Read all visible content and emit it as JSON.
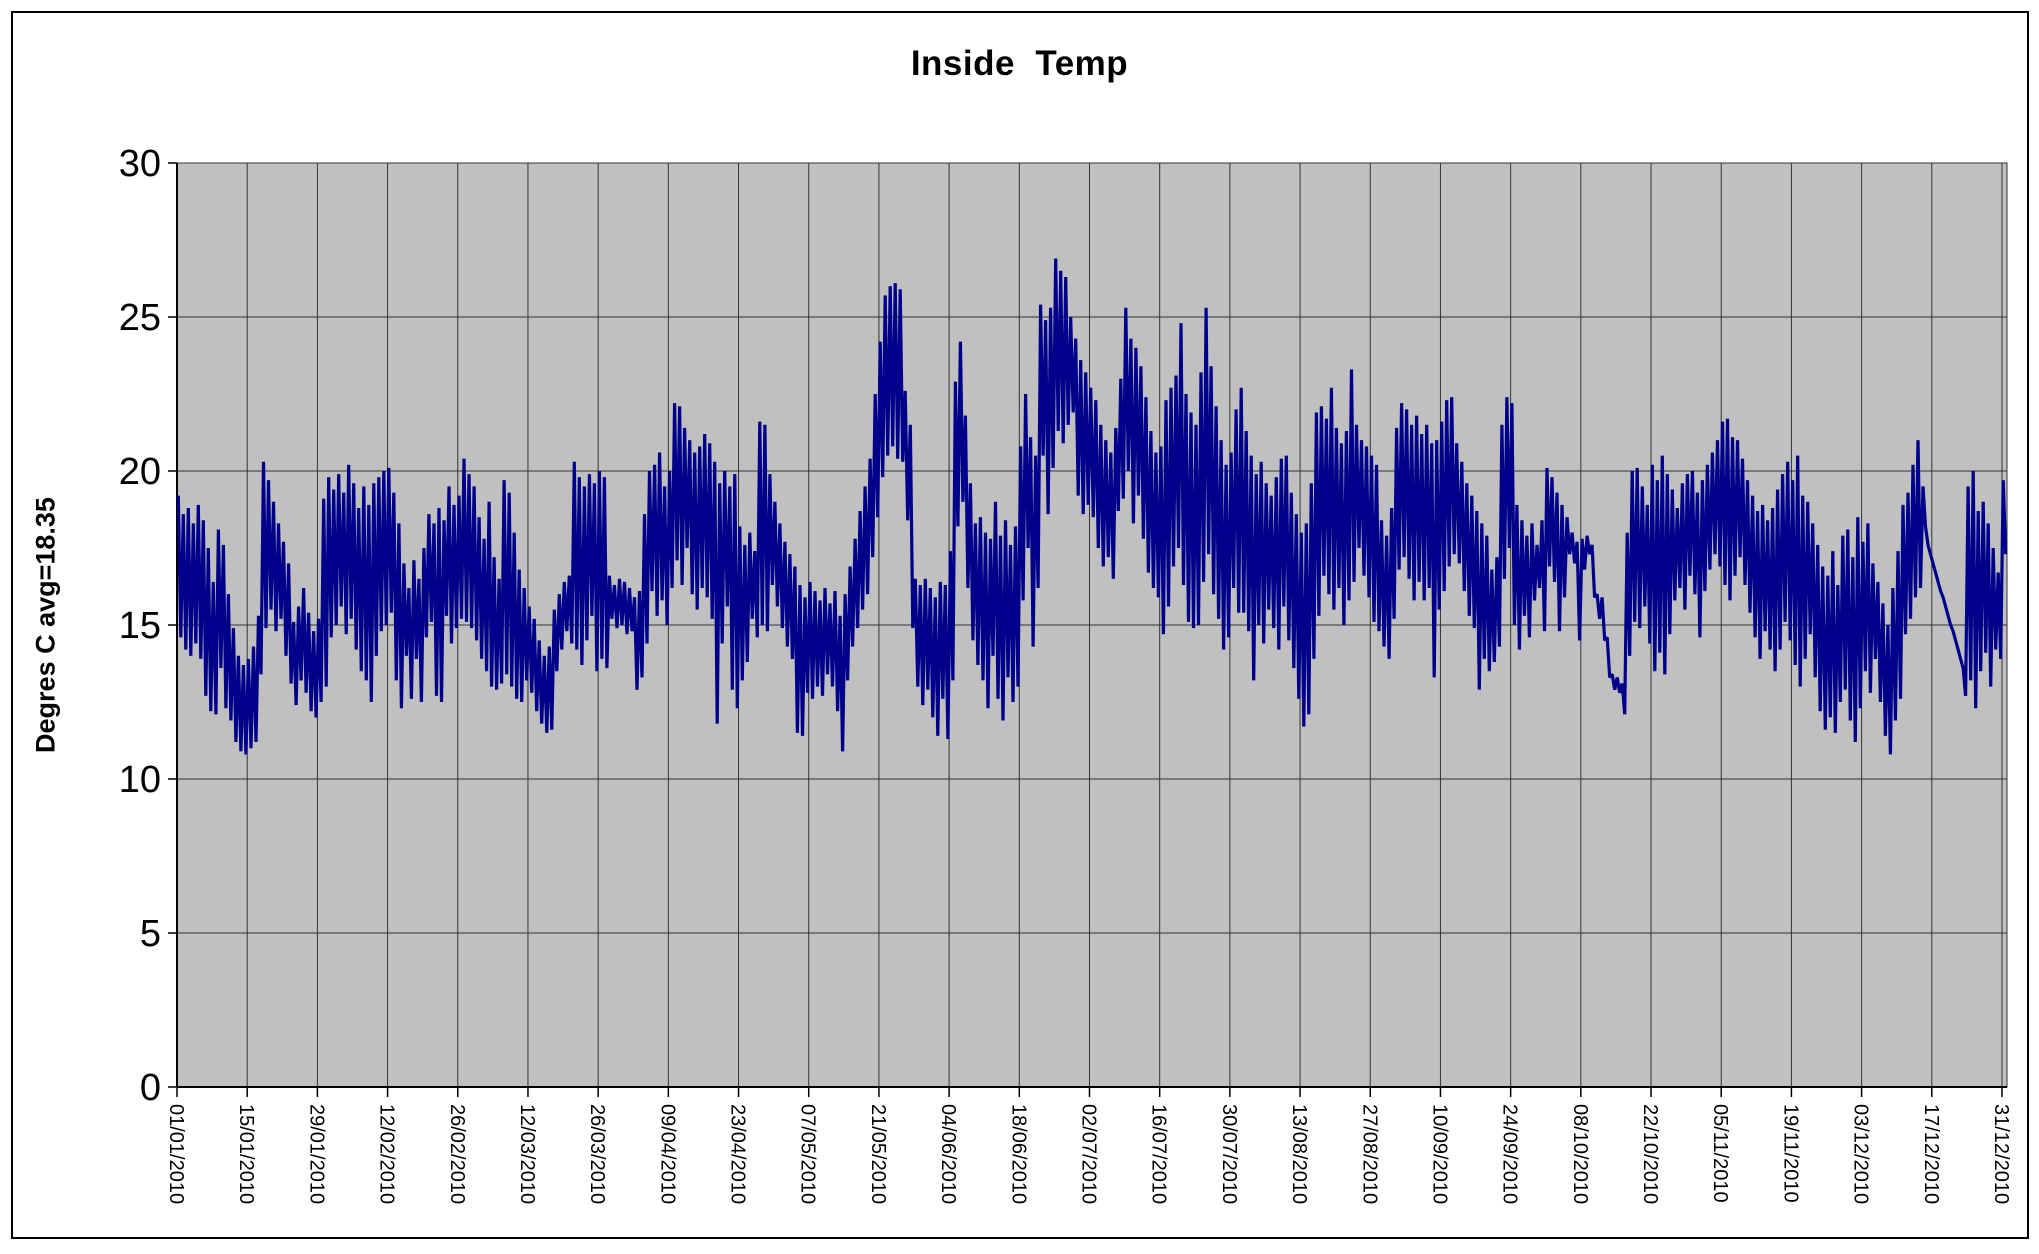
{
  "chart_data": {
    "type": "line",
    "title": "Inside  Temp",
    "ylabel": "Degres C avg=18.35",
    "xlabel": "",
    "ylim": [
      0,
      30
    ],
    "y_ticks": [
      0,
      5,
      10,
      15,
      20,
      25,
      30
    ],
    "x_tick_interval_days": 14,
    "x_range_days": 365,
    "grid": true,
    "legend": "none",
    "plot_bg": "#c0c0c0",
    "grid_color": "#333333",
    "line_color": "#00008b",
    "x_tick_labels": [
      "01/01/2010",
      "15/01/2010",
      "29/01/2010",
      "12/02/2010",
      "26/02/2010",
      "12/03/2010",
      "26/03/2010",
      "09/04/2010",
      "23/04/2010",
      "07/05/2010",
      "21/05/2010",
      "04/06/2010",
      "18/06/2010",
      "02/07/2010",
      "16/07/2010",
      "30/07/2010",
      "13/08/2010",
      "27/08/2010",
      "10/09/2010",
      "24/09/2010",
      "08/10/2010",
      "22/10/2010",
      "05/11/2010",
      "19/11/2010",
      "03/12/2010",
      "17/12/2010",
      "31/12/2010"
    ],
    "series": [
      {
        "name": "Inside Temp",
        "sampling": "two readings per day: daily high then daily low, 01/01/2010 - 31/12/2010",
        "daily_high": [
          19.2,
          18.6,
          18.8,
          18.3,
          18.9,
          18.4,
          17.5,
          16.4,
          18.1,
          17.6,
          16.0,
          14.9,
          14.0,
          13.7,
          13.9,
          14.3,
          15.3,
          20.3,
          19.7,
          19.0,
          18.3,
          17.7,
          17.0,
          15.1,
          15.6,
          16.2,
          15.4,
          14.8,
          15.2,
          19.1,
          19.8,
          19.4,
          19.9,
          19.3,
          20.2,
          19.6,
          18.8,
          19.5,
          18.9,
          19.6,
          19.8,
          20.0,
          20.1,
          19.3,
          18.3,
          17.0,
          16.2,
          17.1,
          16.5,
          17.5,
          18.6,
          18.3,
          18.8,
          18.4,
          19.5,
          18.9,
          19.2,
          20.4,
          19.9,
          19.5,
          18.5,
          17.8,
          19.0,
          17.2,
          16.5,
          19.7,
          19.3,
          18.0,
          16.8,
          16.2,
          15.6,
          15.2,
          14.5,
          14.0,
          14.3,
          15.5,
          16.0,
          16.4,
          16.6,
          20.3,
          19.8,
          19.5,
          19.9,
          19.6,
          20.0,
          19.8,
          16.6,
          16.3,
          16.5,
          16.4,
          16.2,
          15.9,
          16.1,
          18.6,
          20.0,
          20.2,
          20.6,
          19.5,
          20.0,
          22.2,
          22.1,
          21.4,
          21.0,
          20.6,
          20.8,
          21.2,
          20.9,
          20.3,
          19.6,
          20.0,
          19.5,
          19.9,
          18.2,
          17.6,
          18.0,
          17.4,
          21.6,
          21.5,
          19.9,
          19.0,
          18.3,
          17.7,
          17.3,
          16.9,
          16.3,
          15.9,
          16.4,
          16.1,
          15.8,
          16.2,
          15.7,
          16.1,
          15.3,
          16.0,
          16.9,
          17.8,
          18.7,
          19.5,
          20.4,
          22.5,
          24.2,
          25.7,
          26.0,
          26.1,
          25.9,
          22.6,
          21.5,
          16.5,
          16.3,
          16.5,
          16.2,
          15.9,
          16.4,
          16.3,
          17.4,
          22.9,
          24.2,
          21.8,
          19.6,
          18.3,
          18.5,
          18.0,
          17.8,
          19.0,
          17.9,
          18.4,
          17.6,
          18.2,
          20.8,
          22.5,
          21.1,
          20.5,
          25.4,
          24.9,
          25.3,
          26.9,
          26.5,
          26.3,
          25.0,
          24.3,
          23.6,
          23.2,
          22.7,
          22.3,
          21.5,
          21.0,
          20.6,
          21.4,
          23.0,
          25.3,
          24.3,
          24.0,
          23.4,
          22.4,
          21.3,
          20.6,
          20.8,
          22.3,
          22.7,
          23.1,
          24.8,
          22.5,
          21.9,
          21.5,
          23.2,
          25.3,
          23.4,
          22.1,
          21.0,
          20.2,
          20.6,
          22.0,
          22.7,
          21.3,
          20.5,
          19.9,
          20.3,
          19.6,
          19.2,
          19.8,
          20.4,
          20.5,
          19.3,
          18.6,
          18.0,
          18.3,
          19.6,
          21.9,
          22.1,
          21.7,
          22.7,
          21.4,
          20.9,
          21.3,
          23.3,
          21.5,
          21.0,
          20.8,
          20.5,
          20.2,
          18.4,
          17.9,
          18.8,
          21.4,
          22.2,
          22.0,
          21.5,
          21.8,
          21.2,
          21.5,
          20.9,
          21.0,
          21.6,
          22.3,
          22.4,
          20.9,
          20.3,
          19.6,
          19.2,
          18.7,
          18.3,
          17.9,
          16.8,
          17.2,
          21.5,
          22.4,
          22.2,
          18.9,
          18.4,
          17.9,
          18.3,
          17.6,
          18.4,
          20.1,
          19.8,
          19.3,
          18.9,
          18.5,
          18.0,
          17.7,
          17.8,
          17.9,
          17.6,
          16.0,
          15.9,
          14.6,
          13.4,
          13.3,
          13.1,
          18.0,
          20.0,
          20.1,
          19.5,
          18.9,
          20.2,
          19.7,
          20.5,
          19.9,
          19.4,
          18.8,
          19.6,
          19.9,
          20.0,
          19.3,
          19.7,
          20.2,
          20.6,
          21.0,
          21.6,
          21.7,
          21.1,
          21.0,
          20.4,
          19.7,
          19.2,
          18.7,
          18.9,
          18.4,
          18.8,
          19.4,
          19.9,
          20.3,
          19.7,
          20.5,
          19.2,
          19.0,
          18.3,
          17.6,
          16.9,
          16.6,
          17.4,
          16.3,
          17.9,
          18.1,
          17.2,
          18.5,
          17.7,
          18.3,
          17.0,
          16.4,
          15.7,
          15.0,
          16.2,
          17.4,
          18.9,
          19.3,
          20.2,
          21.0,
          19.5,
          17.6,
          17.0,
          16.4,
          15.9,
          15.3,
          14.8,
          14.2,
          13.6,
          19.5,
          20.0,
          18.7,
          19.0,
          18.3,
          17.5,
          16.7,
          19.7
        ],
        "daily_low": [
          14.6,
          14.2,
          14.0,
          14.4,
          13.9,
          12.7,
          12.2,
          12.1,
          13.6,
          12.3,
          11.9,
          11.2,
          10.9,
          10.8,
          11.0,
          11.2,
          13.4,
          14.9,
          15.5,
          14.8,
          15.2,
          14.0,
          13.1,
          12.4,
          13.2,
          12.8,
          12.2,
          12.0,
          12.5,
          13.0,
          14.6,
          15.0,
          15.6,
          14.7,
          15.2,
          14.2,
          13.5,
          13.2,
          12.5,
          14.0,
          14.8,
          15.0,
          15.4,
          13.2,
          12.3,
          14.0,
          12.6,
          13.9,
          12.5,
          14.6,
          15.1,
          12.7,
          12.5,
          15.3,
          14.4,
          14.9,
          15.2,
          15.1,
          14.9,
          14.5,
          13.9,
          13.5,
          13.0,
          12.9,
          13.1,
          13.4,
          13.0,
          12.6,
          12.5,
          13.2,
          12.8,
          12.2,
          11.8,
          11.5,
          11.6,
          13.5,
          14.2,
          14.8,
          14.4,
          14.2,
          13.7,
          14.5,
          15.3,
          13.5,
          13.9,
          13.6,
          15.2,
          14.9,
          15.0,
          14.7,
          14.8,
          12.9,
          13.3,
          14.4,
          16.1,
          15.3,
          15.8,
          15.0,
          16.2,
          17.1,
          16.3,
          17.5,
          16.0,
          15.5,
          16.2,
          15.9,
          15.2,
          11.8,
          14.4,
          15.6,
          12.9,
          12.3,
          13.2,
          13.8,
          15.2,
          14.6,
          15.0,
          14.8,
          16.3,
          15.6,
          14.9,
          14.3,
          13.9,
          11.5,
          11.4,
          12.8,
          12.6,
          13.0,
          12.7,
          13.4,
          13.0,
          12.2,
          10.9,
          13.2,
          14.3,
          14.9,
          15.5,
          16.0,
          17.2,
          18.5,
          19.8,
          20.5,
          20.8,
          20.4,
          20.3,
          18.4,
          14.9,
          13.0,
          12.4,
          12.9,
          12.0,
          11.4,
          12.6,
          11.3,
          13.2,
          18.2,
          19.0,
          16.2,
          14.5,
          13.7,
          13.2,
          12.3,
          14.0,
          12.6,
          11.9,
          13.3,
          12.5,
          13.0,
          15.8,
          17.5,
          14.3,
          16.2,
          20.5,
          18.6,
          20.1,
          21.3,
          20.9,
          21.5,
          21.9,
          19.2,
          18.6,
          18.9,
          18.5,
          17.5,
          16.9,
          17.2,
          16.5,
          18.7,
          19.1,
          20.0,
          18.3,
          19.2,
          17.8,
          16.7,
          16.2,
          15.9,
          14.7,
          15.6,
          16.9,
          17.5,
          16.3,
          15.1,
          14.9,
          15.0,
          16.4,
          17.3,
          16.0,
          15.2,
          14.2,
          14.6,
          16.2,
          15.4,
          15.4,
          14.8,
          13.2,
          15.0,
          14.4,
          15.5,
          14.9,
          14.2,
          15.6,
          14.5,
          13.6,
          12.6,
          11.7,
          12.1,
          13.9,
          15.3,
          16.6,
          16.0,
          15.5,
          16.2,
          15.0,
          15.8,
          16.4,
          17.5,
          16.6,
          15.9,
          15.1,
          14.8,
          14.3,
          13.9,
          15.2,
          16.8,
          17.2,
          16.5,
          15.8,
          16.4,
          15.8,
          16.2,
          13.3,
          15.5,
          16.1,
          16.9,
          17.3,
          17.0,
          16.1,
          15.3,
          14.9,
          12.9,
          13.9,
          13.5,
          13.8,
          14.3,
          16.5,
          17.5,
          15.0,
          14.2,
          15.3,
          14.6,
          15.8,
          16.2,
          14.8,
          16.9,
          16.4,
          14.8,
          15.9,
          17.3,
          17.0,
          14.5,
          16.8,
          17.3,
          15.9,
          15.2,
          14.5,
          13.3,
          12.9,
          12.8,
          12.1,
          14.0,
          15.1,
          14.9,
          15.6,
          14.4,
          13.5,
          14.1,
          13.4,
          14.7,
          15.8,
          16.2,
          15.5,
          16.6,
          16.0,
          14.6,
          16.1,
          16.8,
          17.3,
          16.9,
          16.3,
          15.8,
          16.6,
          17.2,
          16.3,
          15.4,
          14.6,
          13.9,
          14.8,
          14.2,
          13.5,
          14.2,
          15.1,
          14.5,
          13.7,
          13.0,
          13.9,
          14.7,
          13.3,
          12.2,
          11.6,
          12.0,
          11.5,
          12.5,
          12.9,
          11.9,
          11.2,
          12.3,
          13.5,
          12.8,
          13.9,
          12.5,
          11.4,
          10.8,
          11.9,
          12.6,
          14.7,
          15.2,
          15.9,
          16.2,
          18.2,
          17.3,
          16.7,
          16.1,
          15.6,
          15.0,
          14.5,
          13.9,
          12.7,
          13.2,
          12.3,
          13.5,
          14.1,
          13.0,
          14.2,
          13.9,
          17.3
        ]
      }
    ]
  }
}
